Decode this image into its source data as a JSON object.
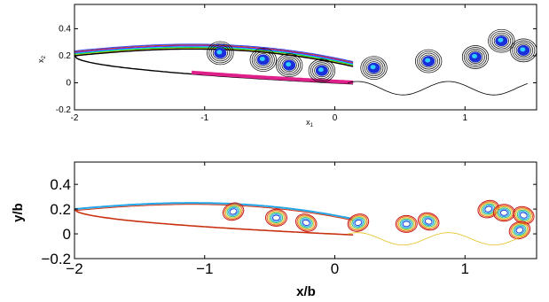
{
  "chart_data": [
    {
      "type": "contour",
      "panel": "top",
      "xlabel": "x",
      "xlabel_sub": "1",
      "ylabel": "x",
      "ylabel_sub": "2",
      "xlim": [
        -2,
        1.55
      ],
      "ylim": [
        -0.2,
        0.58
      ],
      "xticks": [
        -2,
        -1,
        0,
        1
      ],
      "xtick_labels": [
        "-2",
        "-1",
        "0",
        "1"
      ],
      "yticks": [
        -0.2,
        0,
        0.2,
        0.4
      ],
      "ytick_labels": [
        "-0.2",
        "0",
        "0.2",
        "0.4"
      ],
      "grid": false,
      "legend": "none",
      "airfoil": {
        "leading_edge": [
          -2,
          0.2
        ],
        "trailing_edge": [
          0.15,
          0.0
        ],
        "upper_peak": [
          -1.5,
          0.29
        ]
      },
      "vortices": [
        {
          "x": -0.88,
          "y": 0.22
        },
        {
          "x": -0.55,
          "y": 0.17
        },
        {
          "x": -0.35,
          "y": 0.13
        },
        {
          "x": -0.1,
          "y": 0.09
        },
        {
          "x": 0.3,
          "y": 0.11
        },
        {
          "x": 0.72,
          "y": 0.16
        },
        {
          "x": 1.08,
          "y": 0.19
        },
        {
          "x": 1.28,
          "y": 0.31
        },
        {
          "x": 1.45,
          "y": 0.24
        }
      ],
      "colors": {
        "vortex_core": "#1a2fd8",
        "contour": "#000000",
        "underside_band": "#e0208a",
        "rainbow": [
          "#ff00aa",
          "#ffcc00",
          "#00cc44",
          "#00ccff",
          "#7a00ff",
          "#cc4400",
          "#3344ff"
        ]
      }
    },
    {
      "type": "contour",
      "panel": "bottom",
      "xlabel": "x/b",
      "ylabel": "y/b",
      "xlim": [
        -2,
        1.55
      ],
      "ylim": [
        -0.2,
        0.58
      ],
      "xticks": [
        -2,
        -1,
        0,
        1
      ],
      "xtick_labels": [
        "−2",
        "−1",
        "0",
        "1"
      ],
      "yticks": [
        -0.2,
        0,
        0.2,
        0.4
      ],
      "ytick_labels": [
        "−0.2",
        "0",
        "0.2",
        "0.4"
      ],
      "grid": false,
      "legend": "none",
      "vortices": [
        {
          "x": -0.78,
          "y": 0.18
        },
        {
          "x": -0.45,
          "y": 0.13
        },
        {
          "x": -0.22,
          "y": 0.09
        },
        {
          "x": 0.18,
          "y": 0.09
        },
        {
          "x": 0.55,
          "y": 0.08
        },
        {
          "x": 0.72,
          "y": 0.1
        },
        {
          "x": 1.18,
          "y": 0.2
        },
        {
          "x": 1.3,
          "y": 0.17
        },
        {
          "x": 1.45,
          "y": 0.15
        },
        {
          "x": 1.42,
          "y": 0.03
        }
      ],
      "colors": {
        "upper_surface": "#22a6e8",
        "lower_surface": "#c83010",
        "rings": [
          "#1a3fd8",
          "#22a6e8",
          "#30c080",
          "#e8c020",
          "#e06020",
          "#c81818"
        ]
      }
    }
  ]
}
